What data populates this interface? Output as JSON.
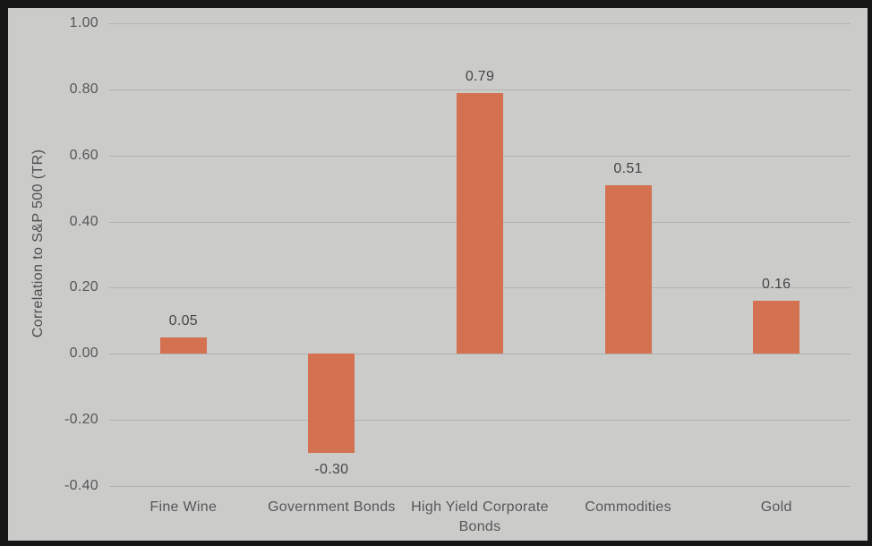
{
  "colors": {
    "frame": "#161616",
    "background": "#cbcbca",
    "gridline": "#b2b2b1",
    "bar": "#d37150",
    "tick_text": "#565656",
    "label_text": "#454545"
  },
  "chart_data": {
    "type": "bar",
    "title": "",
    "xlabel": "",
    "ylabel": "Correlation to S&P 500 (TR)",
    "categories": [
      "Fine Wine",
      "Government Bonds",
      "High Yield Corporate Bonds",
      "Commodities",
      "Gold"
    ],
    "values": [
      0.05,
      -0.3,
      0.79,
      0.51,
      0.16
    ],
    "data_labels": [
      "0.05",
      "-0.30",
      "0.79",
      "0.51",
      "0.16"
    ],
    "ylim": [
      -0.4,
      1.0
    ],
    "ytick_step": 0.2,
    "ytick_labels": [
      "1.00",
      "0.80",
      "0.60",
      "0.40",
      "0.20",
      "0.00",
      "-0.20",
      "-0.40"
    ],
    "grid": "horizontal",
    "legend": "none",
    "bar_color": "#d37150"
  }
}
